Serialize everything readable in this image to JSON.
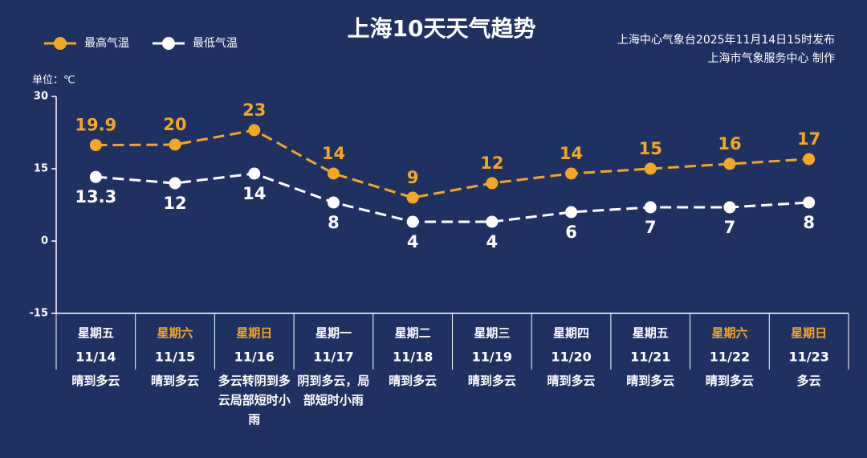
{
  "chart_data": {
    "type": "line",
    "title": "上海10天天气趋势",
    "source": [
      "上海中心气象台2025年11月14日15时发布",
      "上海市气象服务中心 制作"
    ],
    "unit_label": "单位：℃",
    "categories": [
      "11/14",
      "11/15",
      "11/16",
      "11/17",
      "11/18",
      "11/19",
      "11/20",
      "11/21",
      "11/22",
      "11/23"
    ],
    "weekdays": [
      "星期五",
      "星期六",
      "星期日",
      "星期一",
      "星期二",
      "星期三",
      "星期四",
      "星期五",
      "星期六",
      "星期日"
    ],
    "weekday_colors": [
      "#ffffff",
      "#f5a623",
      "#f5a623",
      "#ffffff",
      "#ffffff",
      "#ffffff",
      "#ffffff",
      "#ffffff",
      "#f5a623",
      "#f5a623"
    ],
    "weather": [
      "晴到多云",
      "晴到多云",
      "多云转阴到多云局部短时小雨",
      "阴到多云，局部短时小雨",
      "晴到多云",
      "晴到多云",
      "晴到多云",
      "晴到多云",
      "晴到多云",
      "多云"
    ],
    "series": [
      {
        "name": "最高气温",
        "color": "#f5a623",
        "values": [
          19.9,
          20,
          23,
          14,
          9,
          12,
          14,
          15,
          16,
          17
        ]
      },
      {
        "name": "最低气温",
        "color": "#ffffff",
        "values": [
          13.3,
          12,
          14,
          8,
          4,
          4,
          6,
          7,
          7,
          8
        ]
      }
    ],
    "ylim": [
      -15,
      30
    ],
    "yticks": [
      -15,
      0,
      15,
      30
    ],
    "legend": "top-left"
  }
}
